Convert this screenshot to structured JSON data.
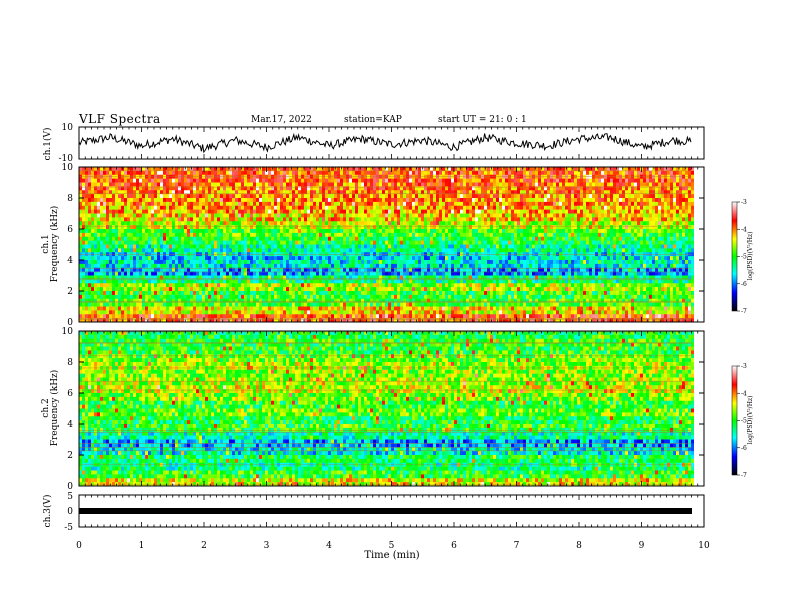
{
  "header": {
    "title": "VLF Spectra",
    "date": "Mar.17, 2022",
    "station": "station=KAP",
    "start": "start UT =  21: 0  : 1"
  },
  "panels": {
    "ch1": {
      "ylabel": "ch.1(V)",
      "ticks": [
        "10",
        "-10"
      ]
    },
    "spec1": {
      "ylabel_top": "ch.1",
      "ylabel_bottom": "Frequency (kHz)",
      "ticks": [
        "0",
        "2",
        "4",
        "6",
        "8",
        "10"
      ]
    },
    "spec2": {
      "ylabel_top": "ch.2",
      "ylabel_bottom": "Frequency (kHz)",
      "ticks": [
        "0",
        "2",
        "4",
        "6",
        "8",
        "10"
      ]
    },
    "ch3": {
      "ylabel": "ch.3(V)",
      "ticks": [
        "5",
        "0",
        "-5"
      ]
    }
  },
  "colorbar": {
    "label": "log(PSD)(V²/Hz)",
    "ticks": [
      "-3",
      "-4",
      "-5",
      "-6",
      "-7"
    ],
    "colors": [
      "#ffffff",
      "#ff0000",
      "#ffff00",
      "#00ff00",
      "#00ffff",
      "#0000ff",
      "#000000"
    ]
  },
  "chart_data": [
    {
      "type": "line",
      "name": "ch1-waveform",
      "ylabel": "ch.1(V)",
      "ylim": [
        -10,
        10
      ],
      "xlim": [
        0,
        10
      ],
      "x": [
        0.0,
        0.5,
        1.0,
        1.5,
        2.0,
        2.5,
        3.0,
        3.5,
        4.0,
        4.5,
        5.0,
        5.5,
        6.0,
        6.5,
        7.0,
        7.5,
        8.0,
        8.5,
        9.0,
        9.5,
        9.8
      ],
      "y": [
        0,
        4,
        -2,
        3,
        -4,
        2,
        -3,
        4,
        -2,
        3,
        -1,
        2,
        -3,
        4,
        0,
        -2,
        3,
        4,
        -3,
        2,
        1
      ],
      "line_color": "#000000"
    },
    {
      "type": "heatmap",
      "name": "ch1-spectrogram",
      "xlabel": "Time (min)",
      "ylabel": "Frequency (kHz)",
      "xlim": [
        0,
        9.8
      ],
      "ylim": [
        0,
        10
      ],
      "zlim": [
        -7,
        -3
      ],
      "zlabel": "log(PSD)(V²/Hz)",
      "frequency_bands_kHz": [
        0.25,
        0.75,
        1.25,
        1.75,
        2.25,
        2.75,
        3.25,
        3.75,
        4.25,
        4.75,
        5.25,
        5.75,
        6.25,
        6.75,
        7.25,
        7.75,
        8.25,
        8.75,
        9.25,
        9.75
      ],
      "band_log_psd": [
        -3.8,
        -4.3,
        -4.9,
        -5.0,
        -4.6,
        -5.3,
        -5.9,
        -5.6,
        -5.7,
        -5.4,
        -5.1,
        -4.9,
        -4.5,
        -4.3,
        -4.1,
        -4.0,
        -4.0,
        -3.9,
        -3.8,
        -3.8
      ]
    },
    {
      "type": "heatmap",
      "name": "ch2-spectrogram",
      "xlabel": "Time (min)",
      "ylabel": "Frequency (kHz)",
      "xlim": [
        0,
        9.8
      ],
      "ylim": [
        0,
        10
      ],
      "zlim": [
        -7,
        -3
      ],
      "zlabel": "log(PSD)(V²/Hz)",
      "frequency_bands_kHz": [
        0.25,
        0.75,
        1.25,
        1.75,
        2.25,
        2.75,
        3.25,
        3.75,
        4.25,
        4.75,
        5.25,
        5.75,
        6.25,
        6.75,
        7.25,
        7.75,
        8.25,
        8.75,
        9.25,
        9.75
      ],
      "band_log_psd": [
        -4.4,
        -5.0,
        -5.3,
        -5.2,
        -5.6,
        -5.9,
        -5.4,
        -5.0,
        -5.1,
        -4.8,
        -5.0,
        -4.7,
        -4.5,
        -4.6,
        -4.7,
        -4.6,
        -4.8,
        -5.0,
        -5.0,
        -5.1
      ]
    },
    {
      "type": "line",
      "name": "ch3-waveform",
      "ylabel": "ch.3(V)",
      "ylim": [
        -5,
        5
      ],
      "xlim": [
        0,
        10
      ],
      "x": [
        0,
        9.8
      ],
      "y": [
        -1,
        -1
      ],
      "line_color": "#000000"
    }
  ],
  "xaxis": {
    "label": "Time (min)",
    "ticks": [
      "0",
      "1",
      "2",
      "3",
      "4",
      "5",
      "6",
      "7",
      "8",
      "9",
      "10"
    ]
  }
}
